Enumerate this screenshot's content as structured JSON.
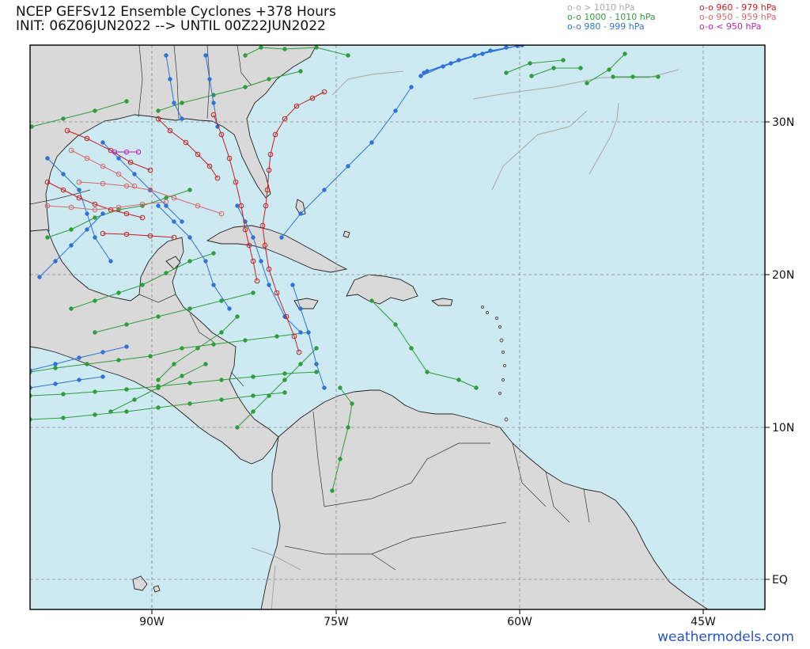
{
  "title": {
    "line1": "NCEP GEFSv12 Ensemble Cyclones +378 Hours",
    "line2": "INIT: 06Z06JUN2022 --> UNTIL 00Z22JUN2022"
  },
  "legend": [
    {
      "marker": "o-o",
      "label": "> 1010 hPa",
      "color": "#a8a8a8"
    },
    {
      "marker": "o-o",
      "label": "1000 - 1010 hPa",
      "color": "#2e9e3a"
    },
    {
      "marker": "o-o",
      "label": "980 - 999 hPa",
      "color": "#2f72d8"
    },
    {
      "marker": "o-o",
      "label": "960 - 979 hPa",
      "color": "#c42121"
    },
    {
      "marker": "o-o",
      "label": "950 - 959 hPa",
      "color": "#d46a6a"
    },
    {
      "marker": "o-o",
      "label": "< 950 hPa",
      "color": "#c020c0"
    }
  ],
  "axes": {
    "lon_labels": [
      "90W",
      "75W",
      "60W",
      "45W"
    ],
    "lat_labels": [
      "30N",
      "20N",
      "10N",
      "EQ"
    ]
  },
  "credit": "weathermodels.com",
  "colors": {
    "ocean": "#cde9f2",
    "land": "#d9d9d9",
    "border": "#222222",
    "grid": "#8a8a8a"
  },
  "icons": [
    "cyclone-track-marker"
  ]
}
